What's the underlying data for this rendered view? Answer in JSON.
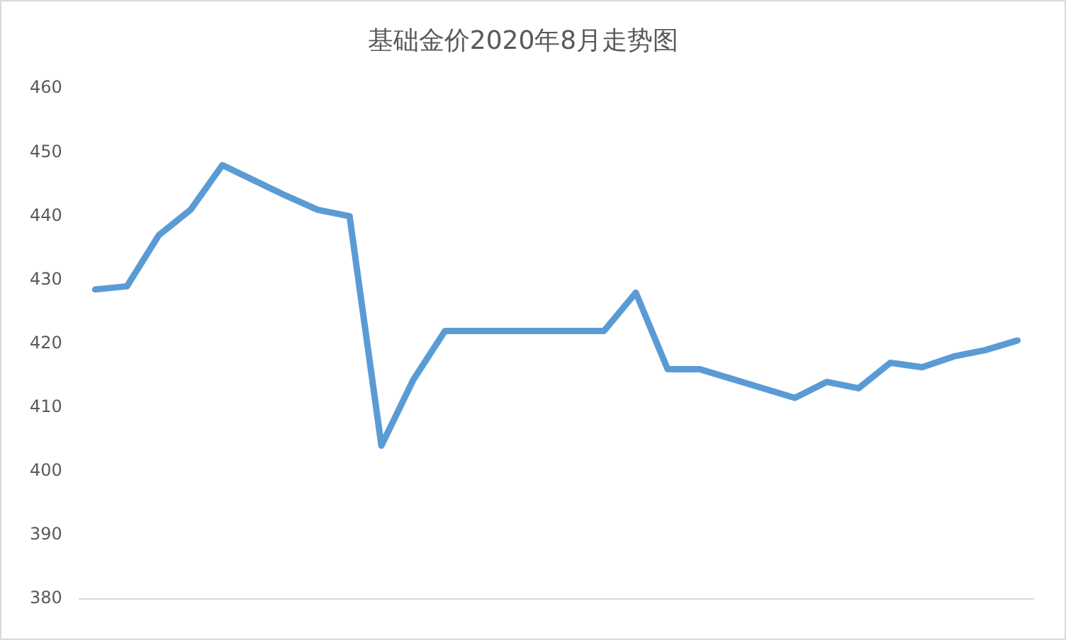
{
  "chart_data": {
    "type": "line",
    "title": "基础金价2020年8月走势图",
    "categories": [
      null,
      null,
      null,
      null,
      null,
      null,
      null,
      null,
      null,
      null,
      null,
      null,
      null,
      null,
      null,
      null,
      null,
      null,
      null,
      null,
      null,
      null,
      null,
      null,
      null,
      null,
      null,
      null,
      null,
      null
    ],
    "series": [
      {
        "color": "#5b9bd5",
        "values": [
          428.5,
          429,
          437,
          441,
          448,
          445.6,
          443.2,
          441,
          440,
          404,
          414.3,
          422,
          422,
          422,
          422,
          422,
          422,
          428,
          416,
          416,
          414.5,
          413,
          411.5,
          414,
          413,
          417,
          416.3,
          418,
          419,
          420.5
        ]
      }
    ],
    "ylim": [
      380,
      460
    ],
    "yticks": [
      380,
      390,
      400,
      410,
      420,
      430,
      440,
      450,
      460
    ],
    "grid": false,
    "legend": false,
    "marker": "none",
    "line_style": "solid"
  }
}
